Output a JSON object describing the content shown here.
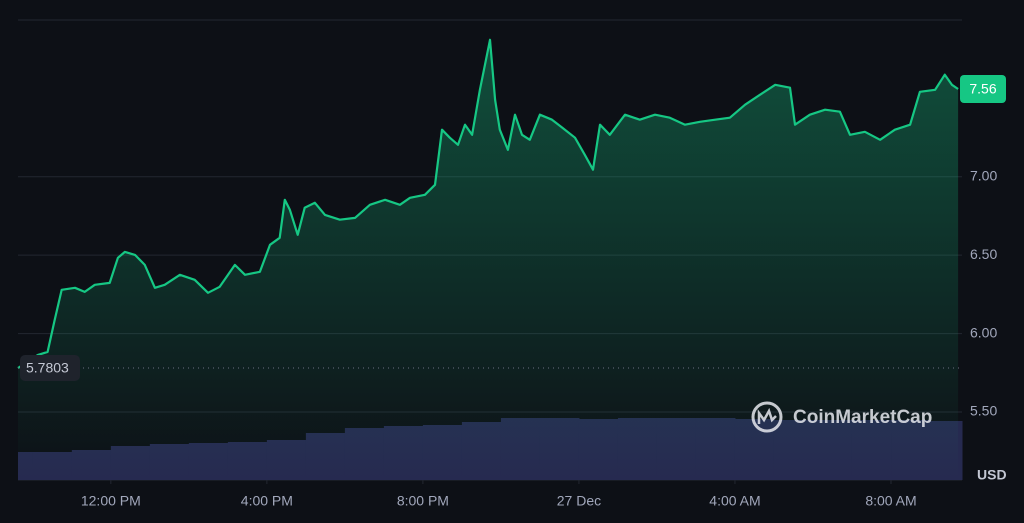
{
  "chart_data": {
    "type": "line",
    "x": [
      -2.38,
      -1.87,
      -1.62,
      -1.44,
      -1.26,
      -0.92,
      -0.67,
      -0.41,
      -0.03,
      0.18,
      0.36,
      0.62,
      0.87,
      1.13,
      1.38,
      1.77,
      2.15,
      2.49,
      2.79,
      3.18,
      3.44,
      3.82,
      4.08,
      4.33,
      4.46,
      4.59,
      4.79,
      4.97,
      5.23,
      5.49,
      5.87,
      6.26,
      6.64,
      7.03,
      7.41,
      7.67,
      8.05,
      8.31,
      8.49,
      8.69,
      8.9,
      9.08,
      9.26,
      9.46,
      9.72,
      9.85,
      9.97,
      10.18,
      10.36,
      10.54,
      10.74,
      11.0,
      11.31,
      11.64,
      11.9,
      12.15,
      12.36,
      12.54,
      12.79,
      13.18,
      13.56,
      13.95,
      14.33,
      14.72,
      15.1,
      15.49,
      15.87,
      16.26,
      16.64,
      17.03,
      17.41,
      17.54,
      17.92,
      18.31,
      18.69,
      18.95,
      19.33,
      19.72,
      20.1,
      20.49,
      20.74,
      21.13,
      21.38,
      21.56,
      21.72
    ],
    "values": [
      5.78,
      5.864,
      5.883,
      6.087,
      6.279,
      6.292,
      6.266,
      6.311,
      6.323,
      6.483,
      6.521,
      6.502,
      6.438,
      6.292,
      6.311,
      6.375,
      6.343,
      6.26,
      6.298,
      6.438,
      6.375,
      6.394,
      6.566,
      6.611,
      6.853,
      6.789,
      6.63,
      6.802,
      6.834,
      6.757,
      6.726,
      6.738,
      6.821,
      6.853,
      6.821,
      6.866,
      6.885,
      6.949,
      7.3,
      7.249,
      7.204,
      7.332,
      7.268,
      7.555,
      7.874,
      7.491,
      7.3,
      7.172,
      7.396,
      7.268,
      7.236,
      7.396,
      7.364,
      7.3,
      7.249,
      7.14,
      7.045,
      7.332,
      7.268,
      7.396,
      7.364,
      7.396,
      7.377,
      7.332,
      7.351,
      7.364,
      7.377,
      7.46,
      7.523,
      7.587,
      7.568,
      7.332,
      7.396,
      7.428,
      7.415,
      7.268,
      7.287,
      7.236,
      7.3,
      7.332,
      7.542,
      7.555,
      7.651,
      7.587,
      7.56
    ],
    "color": "#16c784",
    "xlim": [
      -2.38,
      21.82
    ],
    "ylim": [
      5.066,
      8.0
    ],
    "xticks": [
      {
        "value": 0,
        "label": "12:00 PM"
      },
      {
        "value": 4,
        "label": "4:00 PM"
      },
      {
        "value": 8,
        "label": "8:00 PM"
      },
      {
        "value": 12,
        "label": "27 Dec"
      },
      {
        "value": 16,
        "label": "4:00 AM"
      },
      {
        "value": 20,
        "label": "8:00 AM"
      }
    ],
    "yticks": [
      {
        "value": 5.5,
        "label": "5.50"
      },
      {
        "value": 6,
        "label": "6.00"
      },
      {
        "value": 6.5,
        "label": "6.50"
      },
      {
        "value": 7,
        "label": "7.00"
      }
    ],
    "grid": true,
    "reference_price": 5.7803,
    "last_price": 7.56,
    "currency": "USD",
    "watermark": "CoinMarketCap",
    "volume": {
      "color": "#262a50",
      "x": [
        -2.38,
        -2,
        -1,
        0,
        1,
        2,
        3,
        4,
        5,
        6,
        7,
        8,
        9,
        10,
        11,
        12,
        13,
        14,
        15,
        16,
        17,
        18,
        19,
        20,
        21
      ],
      "values": [
        28,
        28,
        30,
        34,
        36,
        37,
        38,
        40,
        47,
        52,
        54,
        55,
        58,
        62,
        62,
        61,
        62,
        62,
        62,
        61,
        60,
        60,
        60,
        60,
        59
      ]
    }
  }
}
